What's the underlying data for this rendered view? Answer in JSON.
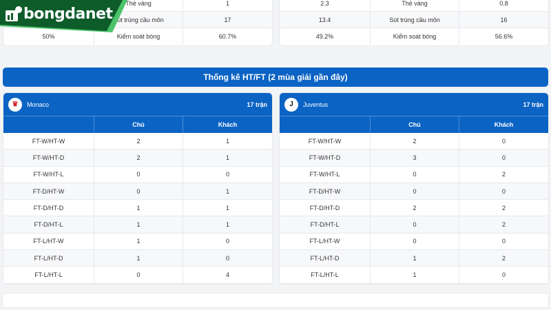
{
  "top_stats": {
    "left": [
      {
        "label": "Thẻ vàng",
        "right": "1"
      },
      {
        "label": "Sút trúng cầu môn",
        "right": "17"
      },
      {
        "left": "50%",
        "label": "Kiểm soát bóng",
        "right": "60.7%"
      }
    ],
    "right": [
      {
        "left": "2.3",
        "label": "Thẻ vàng",
        "right": "0.8"
      },
      {
        "left": "13.4",
        "label": "Sút trúng cầu môn",
        "right": "16"
      },
      {
        "left": "49.2%",
        "label": "Kiểm soát bóng",
        "right": "56.6%"
      }
    ]
  },
  "logo": {
    "text": "bongdanet"
  },
  "htft": {
    "title": "Thống kê HT/FT (2 mùa giải gần đây)",
    "col_home": "Chủ",
    "col_away": "Khách",
    "teams": [
      {
        "name": "Monaco",
        "matches": "17 trận",
        "rows": [
          [
            "FT-W/HT-W",
            "2",
            "1"
          ],
          [
            "FT-W/HT-D",
            "2",
            "1"
          ],
          [
            "FT-W/HT-L",
            "0",
            "0"
          ],
          [
            "FT-D/HT-W",
            "0",
            "1"
          ],
          [
            "FT-D/HT-D",
            "1",
            "1"
          ],
          [
            "FT-D/HT-L",
            "1",
            "1"
          ],
          [
            "FT-L/HT-W",
            "1",
            "0"
          ],
          [
            "FT-L/HT-D",
            "1",
            "0"
          ],
          [
            "FT-L/HT-L",
            "0",
            "4"
          ]
        ]
      },
      {
        "name": "Juventus",
        "matches": "17 trận",
        "rows": [
          [
            "FT-W/HT-W",
            "2",
            "0"
          ],
          [
            "FT-W/HT-D",
            "3",
            "0"
          ],
          [
            "FT-W/HT-L",
            "0",
            "2"
          ],
          [
            "FT-D/HT-W",
            "0",
            "0"
          ],
          [
            "FT-D/HT-D",
            "2",
            "2"
          ],
          [
            "FT-D/HT-L",
            "0",
            "2"
          ],
          [
            "FT-L/HT-W",
            "0",
            "0"
          ],
          [
            "FT-L/HT-D",
            "1",
            "2"
          ],
          [
            "FT-L/HT-L",
            "1",
            "0"
          ]
        ]
      }
    ]
  },
  "colors": {
    "primary": "#0b63c4",
    "logo_green": "#0d5c2a",
    "logo_accent": "#4cc36a"
  }
}
